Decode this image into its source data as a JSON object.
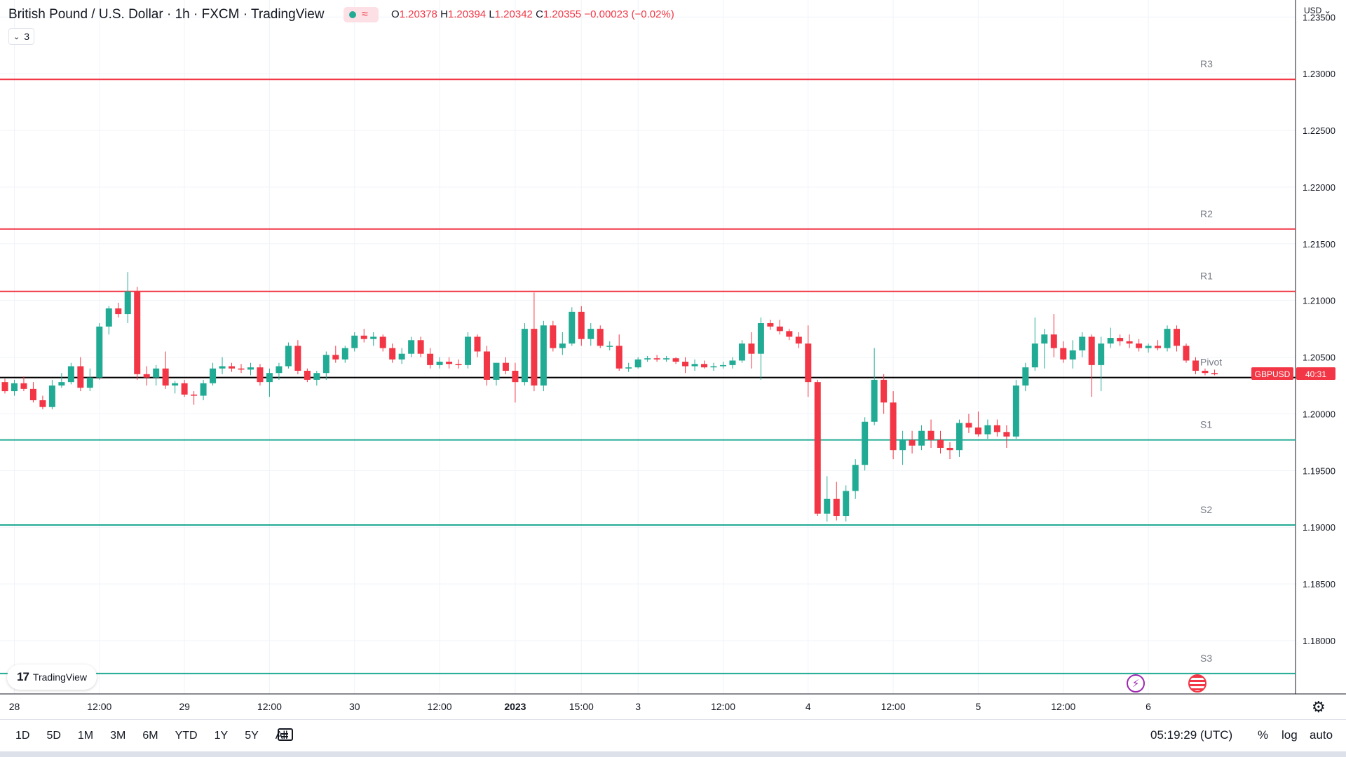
{
  "header": {
    "title": "British Pound / U.S. Dollar · 1h · FXCM · TradingView",
    "ohlc": {
      "o_label": "O",
      "o_value": "1.20378",
      "h_label": "H",
      "h_value": "1.20394",
      "l_label": "L",
      "l_value": "1.20342",
      "c_label": "C",
      "c_value": "1.20355",
      "change": "−0.00023 (−0.02%)"
    },
    "indicator_count": "3",
    "currency": "USD"
  },
  "chart_data": {
    "type": "candlestick",
    "symbol": "GBPUSD",
    "countdown": "40:31",
    "current_price": 1.20355,
    "ylim": [
      1.1753,
      1.2365
    ],
    "y_ticks": [
      "1.23500",
      "1.23000",
      "1.22500",
      "1.22000",
      "1.21500",
      "1.21000",
      "1.20500",
      "1.20000",
      "1.19500",
      "1.19000",
      "1.18500",
      "1.18000"
    ],
    "x_ticks": [
      {
        "label": "28",
        "bar": 1
      },
      {
        "label": "12:00",
        "bar": 10
      },
      {
        "label": "29",
        "bar": 19
      },
      {
        "label": "12:00",
        "bar": 28
      },
      {
        "label": "30",
        "bar": 37
      },
      {
        "label": "12:00",
        "bar": 46
      },
      {
        "label": "2023",
        "bar": 54
      },
      {
        "label": "15:00",
        "bar": 61
      },
      {
        "label": "3",
        "bar": 67
      },
      {
        "label": "12:00",
        "bar": 76
      },
      {
        "label": "4",
        "bar": 85
      },
      {
        "label": "12:00",
        "bar": 94
      },
      {
        "label": "5",
        "bar": 103
      },
      {
        "label": "12:00",
        "bar": 112
      },
      {
        "label": "6",
        "bar": 121
      }
    ],
    "levels": [
      {
        "name": "R3",
        "value": 1.2295,
        "color": "#f23645"
      },
      {
        "name": "R2",
        "value": 1.2163,
        "color": "#f23645"
      },
      {
        "name": "R1",
        "value": 1.2108,
        "color": "#f23645"
      },
      {
        "name": "Pivot",
        "value": 1.2032,
        "color": "#000000"
      },
      {
        "name": "S1",
        "value": 1.1977,
        "color": "#22ab94"
      },
      {
        "name": "S2",
        "value": 1.1902,
        "color": "#22ab94"
      },
      {
        "name": "S3",
        "value": 1.1771,
        "color": "#22ab94"
      }
    ],
    "candles": [
      [
        1.2028,
        1.2031,
        1.2018,
        1.202
      ],
      [
        1.202,
        1.203,
        1.2016,
        1.2027
      ],
      [
        1.2027,
        1.2033,
        1.202,
        1.2022
      ],
      [
        1.2022,
        1.2028,
        1.201,
        1.2012
      ],
      [
        1.2012,
        1.2016,
        1.2004,
        1.2006
      ],
      [
        1.2006,
        1.203,
        1.2004,
        1.2025
      ],
      [
        1.2025,
        1.2036,
        1.2023,
        1.2028
      ],
      [
        1.2028,
        1.2045,
        1.2026,
        1.2042
      ],
      [
        1.2042,
        1.205,
        1.202,
        1.2023
      ],
      [
        1.2023,
        1.204,
        1.202,
        1.2032
      ],
      [
        1.2032,
        1.208,
        1.203,
        1.2077
      ],
      [
        1.2077,
        1.2095,
        1.207,
        1.2093
      ],
      [
        1.2093,
        1.2098,
        1.2085,
        1.2088
      ],
      [
        1.2088,
        1.2125,
        1.208,
        1.2108
      ],
      [
        1.2108,
        1.2112,
        1.203,
        1.2035
      ],
      [
        1.2035,
        1.2042,
        1.2025,
        1.2032
      ],
      [
        1.2032,
        1.2043,
        1.2025,
        1.204
      ],
      [
        1.204,
        1.2055,
        1.2022,
        1.2025
      ],
      [
        1.2025,
        1.2029,
        1.2018,
        1.2027
      ],
      [
        1.2027,
        1.203,
        1.2015,
        1.2017
      ],
      [
        1.2017,
        1.202,
        1.2008,
        1.2016
      ],
      [
        1.2016,
        1.203,
        1.2012,
        1.2027
      ],
      [
        1.2027,
        1.2045,
        1.2025,
        1.204
      ],
      [
        1.204,
        1.205,
        1.2035,
        1.2042
      ],
      [
        1.2042,
        1.2045,
        1.2037,
        1.204
      ],
      [
        1.204,
        1.2044,
        1.2036,
        1.2039
      ],
      [
        1.2039,
        1.2045,
        1.2034,
        1.2041
      ],
      [
        1.2041,
        1.2044,
        1.2025,
        1.2028
      ],
      [
        1.2028,
        1.204,
        1.2015,
        1.2036
      ],
      [
        1.2036,
        1.2045,
        1.203,
        1.2042
      ],
      [
        1.2042,
        1.2063,
        1.204,
        1.206
      ],
      [
        1.206,
        1.2065,
        1.2035,
        1.2038
      ],
      [
        1.2038,
        1.204,
        1.2028,
        1.203
      ],
      [
        1.203,
        1.2038,
        1.2025,
        1.2036
      ],
      [
        1.2036,
        1.2055,
        1.203,
        1.2052
      ],
      [
        1.2052,
        1.206,
        1.2045,
        1.2048
      ],
      [
        1.2048,
        1.206,
        1.2045,
        1.2058
      ],
      [
        1.2058,
        1.2072,
        1.2055,
        1.2069
      ],
      [
        1.2069,
        1.2075,
        1.2063,
        1.2066
      ],
      [
        1.2066,
        1.2072,
        1.206,
        1.2068
      ],
      [
        1.2068,
        1.207,
        1.2055,
        1.2058
      ],
      [
        1.2058,
        1.2062,
        1.2045,
        1.2048
      ],
      [
        1.2048,
        1.2058,
        1.2044,
        1.2053
      ],
      [
        1.2053,
        1.2068,
        1.205,
        1.2065
      ],
      [
        1.2065,
        1.2068,
        1.205,
        1.2053
      ],
      [
        1.2053,
        1.2058,
        1.204,
        1.2043
      ],
      [
        1.2043,
        1.205,
        1.204,
        1.2046
      ],
      [
        1.2046,
        1.205,
        1.204,
        1.2044
      ],
      [
        1.2044,
        1.2048,
        1.204,
        1.2043
      ],
      [
        1.2043,
        1.2072,
        1.204,
        1.2068
      ],
      [
        1.2068,
        1.207,
        1.205,
        1.2055
      ],
      [
        1.2055,
        1.206,
        1.2025,
        1.203
      ],
      [
        1.203,
        1.2045,
        1.2025,
        1.2045
      ],
      [
        1.2045,
        1.205,
        1.2035,
        1.2038
      ],
      [
        1.2038,
        1.2045,
        1.201,
        1.2028
      ],
      [
        1.2028,
        1.208,
        1.2025,
        1.2075
      ],
      [
        1.2075,
        1.2107,
        1.202,
        1.2025
      ],
      [
        1.2025,
        1.2082,
        1.202,
        1.2078
      ],
      [
        1.2078,
        1.2082,
        1.2055,
        1.2058
      ],
      [
        1.2058,
        1.2072,
        1.2052,
        1.2062
      ],
      [
        1.2062,
        1.2094,
        1.206,
        1.209
      ],
      [
        1.209,
        1.2095,
        1.206,
        1.2066
      ],
      [
        1.2066,
        1.208,
        1.206,
        1.2075
      ],
      [
        1.2075,
        1.2078,
        1.2058,
        1.206
      ],
      [
        1.206,
        1.2064,
        1.2056,
        1.206
      ],
      [
        1.206,
        1.207,
        1.2038,
        1.204
      ],
      [
        1.204,
        1.2045,
        1.2037,
        1.2041
      ],
      [
        1.2041,
        1.205,
        1.204,
        1.2048
      ],
      [
        1.2048,
        1.2051,
        1.2046,
        1.2049
      ],
      [
        1.2049,
        1.2052,
        1.2046,
        1.2048
      ],
      [
        1.2048,
        1.2051,
        1.2046,
        1.2049
      ],
      [
        1.2049,
        1.205,
        1.2044,
        1.2046
      ],
      [
        1.2046,
        1.205,
        1.2036,
        1.2042
      ],
      [
        1.2042,
        1.2048,
        1.2038,
        1.2044
      ],
      [
        1.2044,
        1.2047,
        1.204,
        1.2041
      ],
      [
        1.2041,
        1.2045,
        1.2038,
        1.2042
      ],
      [
        1.2042,
        1.2046,
        1.204,
        1.2043
      ],
      [
        1.2043,
        1.205,
        1.204,
        1.2047
      ],
      [
        1.2047,
        1.2065,
        1.2045,
        1.2062
      ],
      [
        1.2062,
        1.2072,
        1.204,
        1.2053
      ],
      [
        1.2053,
        1.2085,
        1.203,
        1.208
      ],
      [
        1.208,
        1.2083,
        1.2074,
        1.2077
      ],
      [
        1.2077,
        1.2083,
        1.207,
        1.2073
      ],
      [
        1.2073,
        1.2075,
        1.2065,
        1.2068
      ],
      [
        1.2068,
        1.2072,
        1.2058,
        1.2062
      ],
      [
        1.2062,
        1.2078,
        1.2015,
        1.2028
      ],
      [
        1.2028,
        1.203,
        1.191,
        1.1912
      ],
      [
        1.1912,
        1.1945,
        1.1905,
        1.1925
      ],
      [
        1.1925,
        1.194,
        1.1906,
        1.191
      ],
      [
        1.191,
        1.1937,
        1.1905,
        1.1932
      ],
      [
        1.1932,
        1.196,
        1.1925,
        1.1955
      ],
      [
        1.1955,
        1.1997,
        1.195,
        1.1993
      ],
      [
        1.1993,
        1.2058,
        1.199,
        1.203
      ],
      [
        1.203,
        1.2035,
        1.2,
        1.201
      ],
      [
        1.201,
        1.202,
        1.196,
        1.1968
      ],
      [
        1.1968,
        1.1985,
        1.1955,
        1.1977
      ],
      [
        1.1977,
        1.1985,
        1.1965,
        1.1972
      ],
      [
        1.1972,
        1.199,
        1.1968,
        1.1985
      ],
      [
        1.1985,
        1.1995,
        1.197,
        1.1977
      ],
      [
        1.1977,
        1.1985,
        1.1965,
        1.197
      ],
      [
        1.197,
        1.1975,
        1.196,
        1.1968
      ],
      [
        1.1968,
        1.1995,
        1.1962,
        1.1992
      ],
      [
        1.1992,
        1.2,
        1.1983,
        1.1988
      ],
      [
        1.1988,
        1.2002,
        1.198,
        1.1982
      ],
      [
        1.1982,
        1.1995,
        1.1978,
        1.199
      ],
      [
        1.199,
        1.1995,
        1.198,
        1.1984
      ],
      [
        1.1984,
        1.199,
        1.197,
        1.198
      ],
      [
        1.198,
        1.203,
        1.1978,
        1.2025
      ],
      [
        1.2025,
        1.2045,
        1.202,
        1.2041
      ],
      [
        1.2041,
        1.2085,
        1.2038,
        1.2062
      ],
      [
        1.2062,
        1.2075,
        1.204,
        1.207
      ],
      [
        1.207,
        1.2088,
        1.205,
        1.2058
      ],
      [
        1.2058,
        1.2064,
        1.2045,
        1.2048
      ],
      [
        1.2048,
        1.2065,
        1.204,
        1.2056
      ],
      [
        1.2056,
        1.2072,
        1.205,
        1.2068
      ],
      [
        1.2068,
        1.207,
        1.2015,
        1.2043
      ],
      [
        1.2043,
        1.2068,
        1.202,
        1.2062
      ],
      [
        1.2062,
        1.2076,
        1.2058,
        1.2067
      ],
      [
        1.2067,
        1.207,
        1.206,
        1.2064
      ],
      [
        1.2064,
        1.207,
        1.2058,
        1.2062
      ],
      [
        1.2062,
        1.2066,
        1.2055,
        1.2058
      ],
      [
        1.2058,
        1.2062,
        1.2054,
        1.206
      ],
      [
        1.206,
        1.2065,
        1.2056,
        1.2058
      ],
      [
        1.2058,
        1.2078,
        1.2055,
        1.2075
      ],
      [
        1.2075,
        1.2078,
        1.2055,
        1.206
      ],
      [
        1.206,
        1.2062,
        1.2045,
        1.2047
      ],
      [
        1.2047,
        1.205,
        1.2035,
        1.2038
      ],
      [
        1.2038,
        1.204,
        1.2034,
        1.2036
      ],
      [
        1.2036,
        1.2039,
        1.2034,
        1.2035
      ]
    ]
  },
  "footer": {
    "ranges": [
      "1D",
      "5D",
      "1M",
      "3M",
      "6M",
      "YTD",
      "1Y",
      "5Y",
      "All"
    ],
    "time": "05:19:29 (UTC)",
    "percent_label": "%",
    "log_label": "log",
    "auto_label": "auto"
  },
  "branding": {
    "logo_text": "TradingView"
  },
  "colors": {
    "up": "#22ab94",
    "down": "#f23645",
    "grid": "#f0f3fa"
  }
}
